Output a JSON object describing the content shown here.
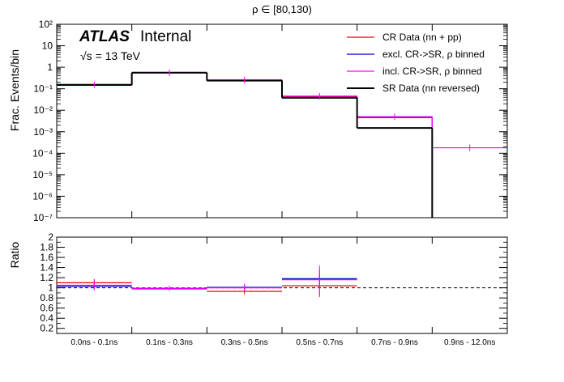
{
  "chart_data": {
    "type": "step",
    "title": "ρ ∈ [80,130)",
    "atlas_label": "ATLAS",
    "atlas_status": "Internal",
    "energy_label": "√s = 13 TeV",
    "categories": [
      "0.0ns - 0.1ns",
      "0.1ns - 0.3ns",
      "0.3ns - 0.5ns",
      "0.5ns - 0.7ns",
      "0.7ns - 0.9ns",
      "0.9ns - 12.0ns"
    ],
    "main": {
      "ylabel": "Frac. Events/bin",
      "yscale": "log",
      "ylim": [
        1e-07,
        100
      ],
      "ytick_labels": [
        "10⁻⁷",
        "10⁻⁶",
        "10⁻⁵",
        "10⁻⁴",
        "10⁻³",
        "10⁻²",
        "10⁻¹",
        "1",
        "10",
        "10²"
      ],
      "series": [
        {
          "name": "CR Data (nn + pp)",
          "color": "#e8000b",
          "values": [
            0.16,
            0.55,
            0.24,
            0.042,
            0.0045,
            null
          ]
        },
        {
          "name": "excl. CR->SR, ρ binned",
          "color": "#0000cc",
          "values": [
            0.155,
            0.55,
            0.255,
            0.045,
            0.005,
            null
          ]
        },
        {
          "name": "incl. CR->SR, ρ binned",
          "color": "#ff00ff",
          "values": [
            0.155,
            0.55,
            0.255,
            0.045,
            0.005,
            0.00018
          ]
        },
        {
          "name": "SR Data (nn reversed)",
          "color": "#000000",
          "values": [
            0.15,
            0.56,
            0.24,
            0.038,
            0.0015,
            null
          ]
        }
      ]
    },
    "ratio": {
      "ylabel": "Ratio",
      "ylim": [
        0.1,
        2.0
      ],
      "ytick_labels": [
        "0.2",
        "0.4",
        "0.6",
        "0.8",
        "1",
        "1.2",
        "1.4",
        "1.6",
        "1.8",
        "2"
      ],
      "reference": 1,
      "series": [
        {
          "name": "CR Data (nn + pp)",
          "color": "#e8000b",
          "values": [
            1.1,
            0.99,
            0.93,
            1.04,
            null,
            null
          ]
        },
        {
          "name": "excl. CR->SR, ρ binned",
          "color": "#0000cc",
          "values": [
            1.03,
            0.98,
            1.01,
            1.18,
            null,
            null
          ]
        },
        {
          "name": "incl. CR->SR, ρ binned",
          "color": "#ff00ff",
          "values": [
            1.05,
            0.99,
            1.0,
            1.16,
            null,
            null
          ]
        }
      ]
    }
  }
}
